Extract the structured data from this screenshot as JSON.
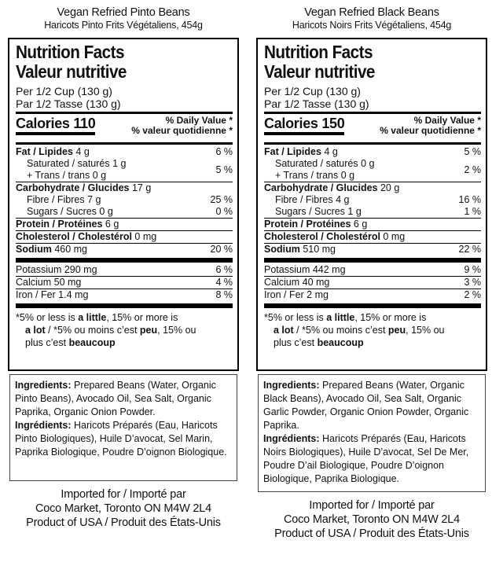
{
  "left": {
    "name": "Vegan Refried Pinto Beans",
    "subname": "Haricots Pinto Frits Végétaliens, 454g",
    "title_en": "Nutrition Facts",
    "title_fr": "Valeur nutritive",
    "serving_en": "Per 1/2 Cup (130 g)",
    "serving_fr": "Par 1/2 Tasse (130 g)",
    "calories_label": "Calories",
    "calories_value": "110",
    "dv_en": "% Daily Value *",
    "dv_fr": "% valeur quotidienne *",
    "fat_label": "Fat / Lipides",
    "fat_amount": " 4 g",
    "fat_pct": "6 %",
    "sat": "Saturated / saturés 1 g",
    "trans": "+ Trans / trans 0 g",
    "sattrans_pct": "5 %",
    "carb_label": "Carbohydrate / Glucides",
    "carb_amount": " 17 g",
    "fibre": "Fibre / Fibres 7 g",
    "fibre_pct": "25 %",
    "sugars": "Sugars / Sucres 0 g",
    "sugars_pct": "0 %",
    "protein_label": "Protein / Protéines",
    "protein_amount": " 6 g",
    "chol_label": "Cholesterol / Cholestérol",
    "chol_amount": " 0 mg",
    "sodium_label": "Sodium",
    "sodium_amount": " 460 mg",
    "sodium_pct": "20 %",
    "potassium": "Potassium 290 mg",
    "potassium_pct": "6 %",
    "calcium": "Calcium 50 mg",
    "calcium_pct": "4 %",
    "iron": "Iron / Fer 1.4 mg",
    "iron_pct": "8 %",
    "ingr_en_label": "Ingredients:",
    "ingr_en": " Prepared Beans (Water, Organic Pinto Beans), Avocado Oil, Sea Salt, Organic Paprika, Organic Onion Powder.",
    "ingr_fr_label": "Ingrédients:",
    "ingr_fr": " Haricots Préparés (Eau, Haricots Pinto Biologiques), Huile D’avocat, Sel Marin, Paprika Biologique, Poudre D’oignon Biologique."
  },
  "right": {
    "name": "Vegan Refried Black Beans",
    "subname": "Haricots Noirs Frits Végétaliens, 454g",
    "title_en": "Nutrition Facts",
    "title_fr": "Valeur nutritive",
    "serving_en": "Per 1/2 Cup (130 g)",
    "serving_fr": "Par 1/2 Tasse (130 g)",
    "calories_label": "Calories",
    "calories_value": "150",
    "dv_en": "% Daily Value *",
    "dv_fr": "% valeur quotidienne *",
    "fat_label": "Fat / Lipides",
    "fat_amount": " 4 g",
    "fat_pct": "5 %",
    "sat": "Saturated / saturés 0 g",
    "trans": "+ Trans / trans 0 g",
    "sattrans_pct": "2 %",
    "carb_label": "Carbohydrate / Glucides",
    "carb_amount": " 20 g",
    "fibre": "Fibre / Fibres 4 g",
    "fibre_pct": "16 %",
    "sugars": "Sugars / Sucres 1 g",
    "sugars_pct": "1 %",
    "protein_label": "Protein / Protéines",
    "protein_amount": " 6 g",
    "chol_label": "Cholesterol / Cholestérol",
    "chol_amount": " 0 mg",
    "sodium_label": "Sodium",
    "sodium_amount": " 510 mg",
    "sodium_pct": "22 %",
    "potassium": "Potassium 442 mg",
    "potassium_pct": "9 %",
    "calcium": "Calcium 40 mg",
    "calcium_pct": "3 %",
    "iron": "Iron / Fer 2 mg",
    "iron_pct": "2 %",
    "ingr_en_label": "Ingredients:",
    "ingr_en": " Prepared Beans (Water, Organic Black Beans), Avocado Oil, Sea Salt, Organic Garlic Powder, Organic Onion Powder, Organic Paprika.",
    "ingr_fr_label": "Ingrédients:",
    "ingr_fr": " Haricots Préparés (Eau, Haricots Noirs Biologiques), Huile D’avocat, Sel De Mer, Poudre D’ail Biologique, Poudre D’oignon Biologique, Paprika Biologique."
  },
  "footnote": {
    "line1_a": "*5% or less is ",
    "line1_b": "a little",
    "line1_c": ", 15% or more is",
    "line2_a": "a lot",
    "line2_b": " / *5% ou moins c’est ",
    "line2_c": "peu",
    "line2_d": ", 15% ou",
    "line3_a": "plus c’est ",
    "line3_b": "beaucoup"
  },
  "import": {
    "line1": "Imported for / Importé par",
    "line2": "Coco Market, Toronto ON M4W 2L4",
    "line3": "Product of USA / Produit des États-Unis"
  }
}
